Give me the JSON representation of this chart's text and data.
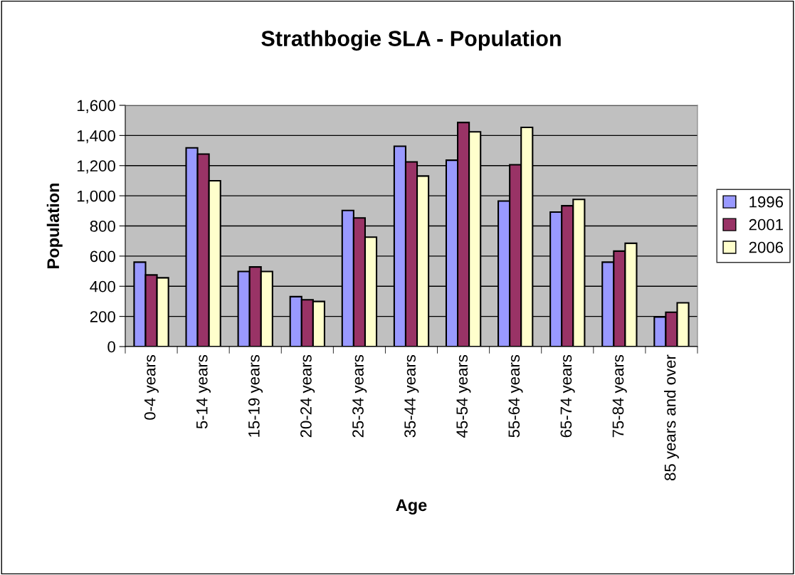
{
  "chart_data": {
    "type": "bar",
    "title": "Strathbogie SLA - Population",
    "xlabel": "Age",
    "ylabel": "Population",
    "categories": [
      "0-4 years",
      "5-14 years",
      "15-19 years",
      "20-24 years",
      "25-34 years",
      "35-44 years",
      "45-54 years",
      "55-64 years",
      "65-74 years",
      "75-84 years",
      "85 years and over"
    ],
    "series": [
      {
        "name": "1996",
        "color": "#9999ff",
        "values": [
          560,
          1318,
          498,
          331,
          903,
          1329,
          1236,
          965,
          892,
          560,
          196
        ]
      },
      {
        "name": "2001",
        "color": "#993366",
        "values": [
          475,
          1277,
          528,
          310,
          853,
          1225,
          1486,
          1206,
          934,
          633,
          228
        ]
      },
      {
        "name": "2006",
        "color": "#ffffcc",
        "values": [
          456,
          1100,
          498,
          299,
          726,
          1131,
          1424,
          1454,
          976,
          685,
          290
        ]
      }
    ],
    "ylim": [
      0,
      1600
    ],
    "yticks": [
      {
        "value": 0,
        "label": "0"
      },
      {
        "value": 200,
        "label": "200"
      },
      {
        "value": 400,
        "label": "400"
      },
      {
        "value": 600,
        "label": "600"
      },
      {
        "value": 800,
        "label": "800"
      },
      {
        "value": 1000,
        "label": "1,000"
      },
      {
        "value": 1200,
        "label": "1,200"
      },
      {
        "value": 1400,
        "label": "1,400"
      },
      {
        "value": 1600,
        "label": "1,600"
      }
    ],
    "grid": "y",
    "legend": "right"
  }
}
